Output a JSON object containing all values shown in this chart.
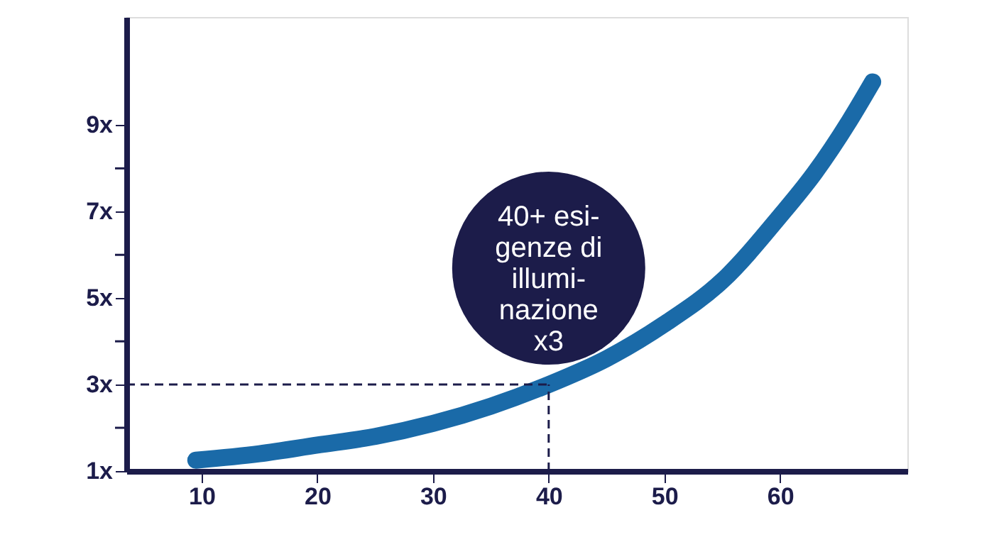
{
  "chart_data": {
    "type": "line",
    "x": [
      9.5,
      15,
      20,
      25,
      30,
      35,
      40,
      45,
      50,
      55,
      60,
      63,
      66,
      68
    ],
    "series": [
      {
        "color": "#1a6aa8",
        "values": [
          1.25,
          1.4,
          1.6,
          1.8,
          2.1,
          2.5,
          3,
          3.6,
          4.4,
          5.4,
          6.9,
          7.9,
          9.1,
          10
        ]
      }
    ],
    "xlim": [
      3.5,
      71
    ],
    "xticks": [
      10,
      20,
      30,
      40,
      50,
      60
    ],
    "ylim": [
      1,
      11.5
    ],
    "yticks": [
      {
        "value": 1,
        "label": "1x"
      },
      {
        "value": 2,
        "label": null
      },
      {
        "value": 3,
        "label": "3x"
      },
      {
        "value": 4,
        "label": null
      },
      {
        "value": 5,
        "label": "5x"
      },
      {
        "value": 6,
        "label": null
      },
      {
        "value": 7,
        "label": "7x"
      },
      {
        "value": 8,
        "label": null
      },
      {
        "value": 9,
        "label": "9x"
      }
    ],
    "ref_lines": [
      {
        "axis": "x",
        "value": 40,
        "line_style": "dashed",
        "color": "#1c1c4a"
      },
      {
        "axis": "y",
        "value": 3,
        "line_style": "dashed",
        "color": "#1c1c4a"
      }
    ],
    "annotations": [
      {
        "text": "40+ esi-\ngenze di\nillumi-\nnazione\nx3",
        "x": 40,
        "y": 3
      }
    ],
    "grid": false,
    "legend": false,
    "line_style": "solid"
  }
}
